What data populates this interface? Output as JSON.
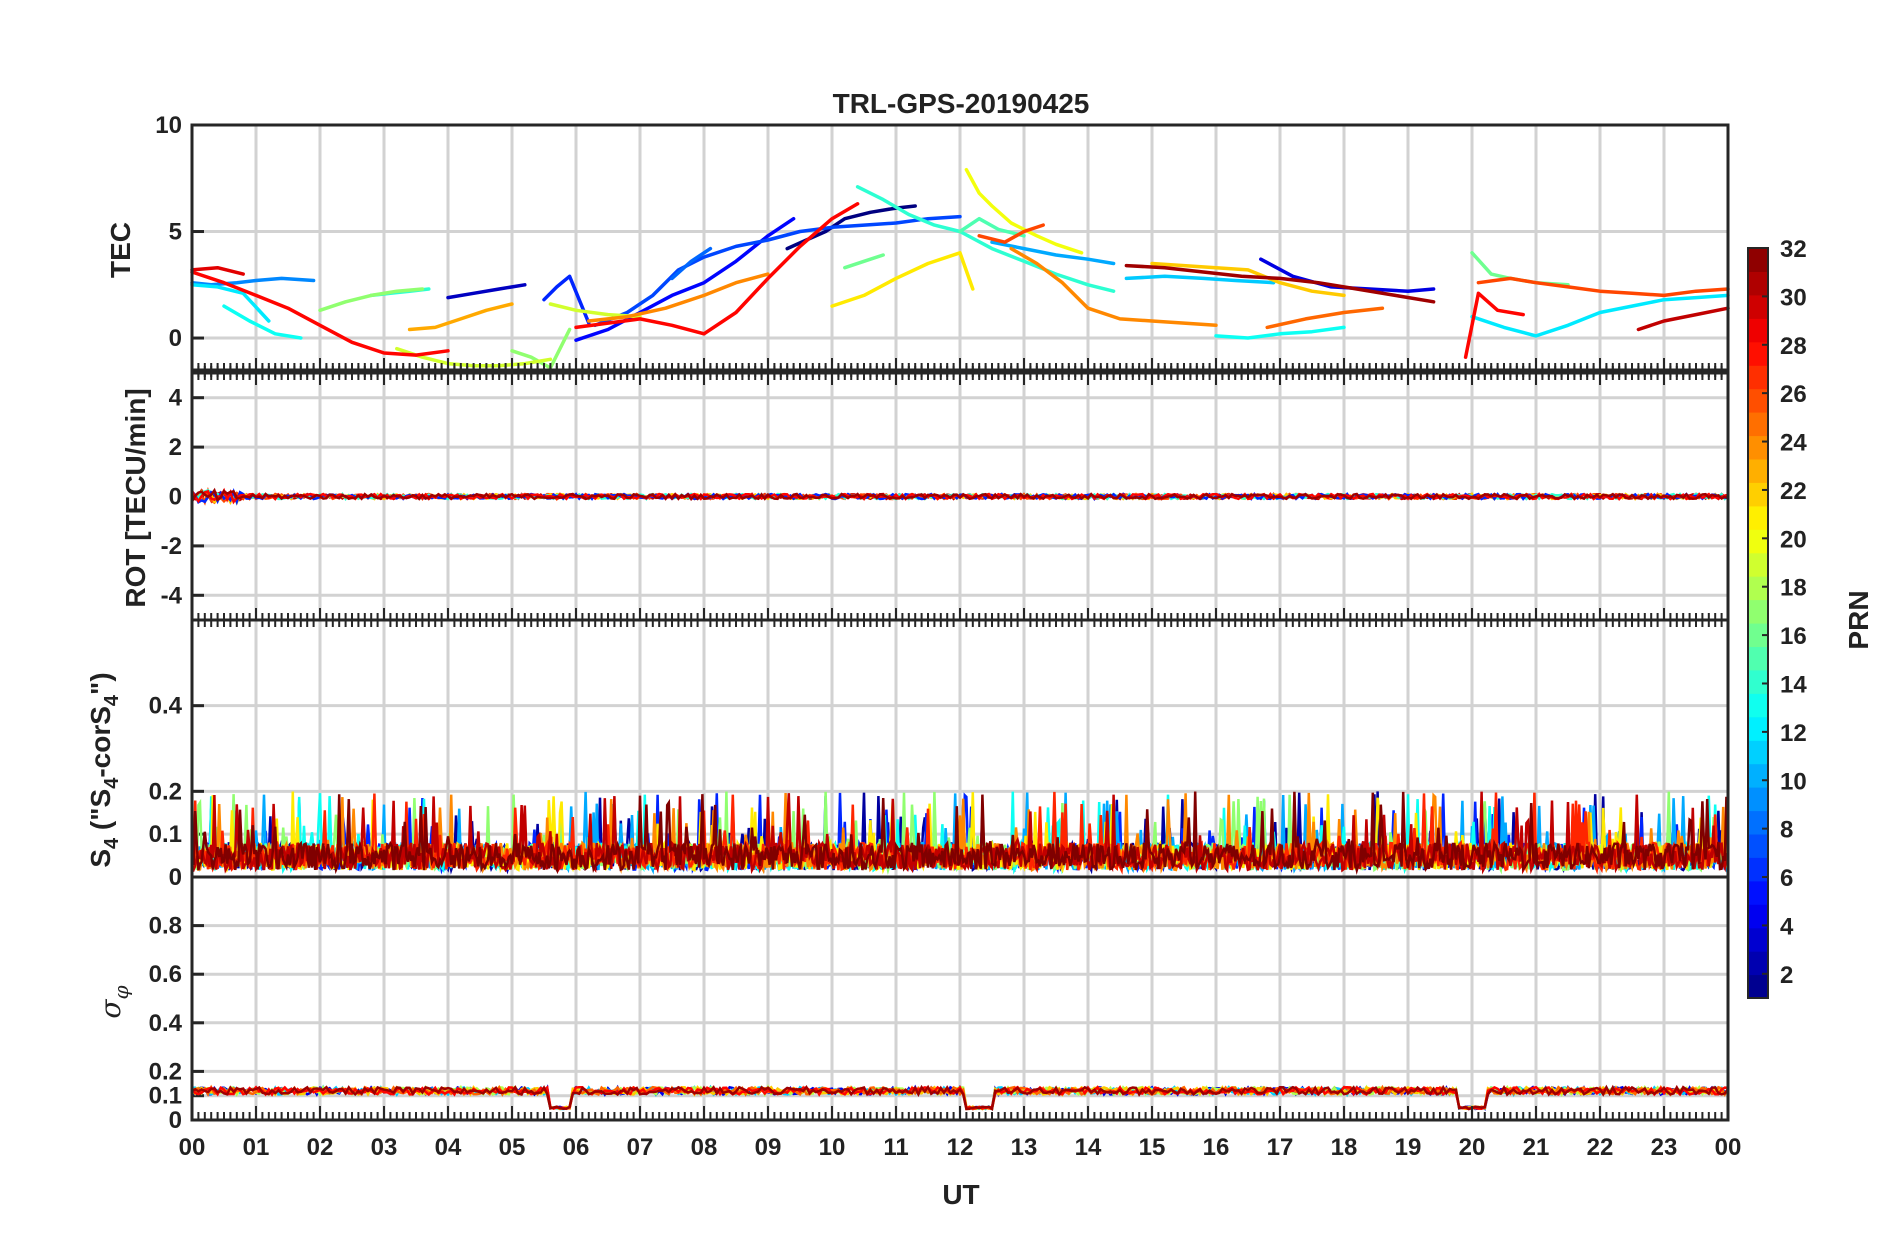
{
  "chart_data": {
    "type": "line",
    "title": "TRL-GPS-20190425",
    "xlabel": "UT",
    "x_ticks": [
      "00",
      "01",
      "02",
      "03",
      "04",
      "05",
      "06",
      "07",
      "08",
      "09",
      "10",
      "11",
      "12",
      "13",
      "14",
      "15",
      "16",
      "17",
      "18",
      "19",
      "20",
      "21",
      "22",
      "23",
      "00"
    ],
    "x_range_hours": [
      0,
      24
    ],
    "grid": true,
    "colorbar": {
      "label": "PRN",
      "range": [
        1,
        32
      ],
      "ticks": [
        2,
        4,
        6,
        8,
        10,
        12,
        14,
        16,
        18,
        20,
        22,
        24,
        26,
        28,
        30,
        32
      ],
      "colormap": "jet",
      "placement": "right"
    },
    "panels": [
      {
        "id": "tec",
        "ylabel": "TEC",
        "ylim": [
          -1.5,
          10
        ],
        "y_ticks": [
          "0",
          "5",
          "10"
        ],
        "y_tick_values": [
          0,
          5,
          10
        ],
        "series": [
          {
            "prn": 1,
            "x": [
              9.3,
              9.6,
              9.9,
              10.2,
              10.6,
              11.0,
              11.3
            ],
            "y": [
              4.2,
              4.6,
              5.0,
              5.6,
              5.9,
              6.1,
              6.2
            ]
          },
          {
            "prn": 3,
            "x": [
              4.0,
              4.4,
              4.8,
              5.2
            ],
            "y": [
              1.9,
              2.1,
              2.3,
              2.5
            ]
          },
          {
            "prn": 4,
            "x": [
              16.7,
              17.2,
              17.8,
              18.4,
              19.0,
              19.4
            ],
            "y": [
              3.7,
              2.9,
              2.4,
              2.3,
              2.2,
              2.3
            ]
          },
          {
            "prn": 5,
            "x": [
              6.0,
              6.5,
              7.0,
              7.5,
              8.0,
              8.5,
              9.0,
              9.4
            ],
            "y": [
              -0.1,
              0.4,
              1.2,
              2.0,
              2.6,
              3.6,
              4.8,
              5.6
            ]
          },
          {
            "prn": 6,
            "x": [
              5.5,
              5.7,
              5.9,
              6.2
            ],
            "y": [
              1.8,
              2.4,
              2.9,
              0.7
            ]
          },
          {
            "prn": 7,
            "x": [
              6.3,
              6.8,
              7.2,
              7.6,
              8.0,
              8.5,
              9.0,
              9.5,
              10.0,
              10.5,
              11.0,
              11.5,
              12.0
            ],
            "y": [
              0.6,
              1.2,
              2.0,
              3.2,
              3.8,
              4.3,
              4.6,
              5.0,
              5.2,
              5.3,
              5.4,
              5.6,
              5.7
            ]
          },
          {
            "prn": 8,
            "x": [
              7.5,
              7.8,
              8.1
            ],
            "y": [
              2.8,
              3.6,
              4.2
            ]
          },
          {
            "prn": 9,
            "x": [
              0.0,
              0.3,
              0.7,
              1.0,
              1.4,
              1.9
            ],
            "y": [
              2.6,
              2.5,
              2.6,
              2.7,
              2.8,
              2.7
            ]
          },
          {
            "prn": 10,
            "x": [
              12.5,
              13.0,
              13.5,
              14.0,
              14.4
            ],
            "y": [
              4.5,
              4.2,
              3.9,
              3.7,
              3.5
            ]
          },
          {
            "prn": 11,
            "x": [
              14.6,
              15.2,
              15.8,
              16.3,
              16.9
            ],
            "y": [
              2.8,
              2.9,
              2.8,
              2.7,
              2.6
            ]
          },
          {
            "prn": 12,
            "x": [
              20.0,
              20.5,
              21.0,
              21.5,
              22.0,
              22.5,
              23.0,
              23.5,
              24.0
            ],
            "y": [
              1.0,
              0.5,
              0.1,
              0.6,
              1.2,
              1.5,
              1.8,
              1.9,
              2.0
            ]
          },
          {
            "prn": 12,
            "x": [
              0.0,
              0.4,
              0.8,
              1.2
            ],
            "y": [
              2.5,
              2.4,
              2.1,
              0.8
            ]
          },
          {
            "prn": 13,
            "x": [
              16.0,
              16.5,
              17.0,
              17.5,
              18.0
            ],
            "y": [
              0.1,
              0.0,
              0.2,
              0.3,
              0.5
            ]
          },
          {
            "prn": 13,
            "x": [
              0.5,
              0.9,
              1.3,
              1.7
            ],
            "y": [
              1.5,
              0.8,
              0.2,
              0.0
            ]
          },
          {
            "prn": 14,
            "x": [
              10.4,
              10.8,
              11.2,
              11.6,
              12.0,
              12.5,
              13.0,
              13.5,
              14.0,
              14.4
            ],
            "y": [
              7.1,
              6.5,
              5.8,
              5.3,
              5.0,
              4.2,
              3.6,
              3.0,
              2.5,
              2.2
            ]
          },
          {
            "prn": 14,
            "x": [
              2.8,
              3.1,
              3.4,
              3.7
            ],
            "y": [
              2.0,
              2.1,
              2.2,
              2.3
            ]
          },
          {
            "prn": 15,
            "x": [
              12.0,
              12.3,
              12.6,
              13.0
            ],
            "y": [
              5.0,
              5.6,
              5.1,
              4.8
            ]
          },
          {
            "prn": 16,
            "x": [
              20.0,
              20.3,
              20.6,
              21.0,
              21.5
            ],
            "y": [
              4.0,
              3.0,
              2.8,
              2.6,
              2.5
            ]
          },
          {
            "prn": 16,
            "x": [
              10.2,
              10.5,
              10.8
            ],
            "y": [
              3.3,
              3.6,
              3.9
            ]
          },
          {
            "prn": 17,
            "x": [
              2.0,
              2.4,
              2.8,
              3.2,
              3.6
            ],
            "y": [
              1.3,
              1.7,
              2.0,
              2.2,
              2.3
            ]
          },
          {
            "prn": 17,
            "x": [
              5.0,
              5.3,
              5.6,
              5.9
            ],
            "y": [
              -0.6,
              -0.9,
              -1.4,
              0.4
            ]
          },
          {
            "prn": 19,
            "x": [
              3.2,
              3.6,
              4.0,
              4.4,
              4.8,
              5.2,
              5.6
            ],
            "y": [
              -0.5,
              -0.9,
              -1.2,
              -1.3,
              -1.3,
              -1.2,
              -1.0
            ]
          },
          {
            "prn": 19,
            "x": [
              5.6,
              6.0,
              6.5,
              7.0
            ],
            "y": [
              1.6,
              1.3,
              1.1,
              1.0
            ]
          },
          {
            "prn": 20,
            "x": [
              12.1,
              12.3,
              12.5,
              12.8,
              13.2,
              13.5,
              13.9
            ],
            "y": [
              7.9,
              6.8,
              6.2,
              5.4,
              4.8,
              4.4,
              4.0
            ]
          },
          {
            "prn": 21,
            "x": [
              10.0,
              10.5,
              11.0,
              11.5,
              12.0,
              12.2
            ],
            "y": [
              1.5,
              2.0,
              2.8,
              3.5,
              4.0,
              2.3
            ]
          },
          {
            "prn": 22,
            "x": [
              15.0,
              15.5,
              16.0,
              16.5,
              17.0,
              17.5,
              18.0
            ],
            "y": [
              3.5,
              3.4,
              3.3,
              3.2,
              2.6,
              2.2,
              2.0
            ]
          },
          {
            "prn": 23,
            "x": [
              3.4,
              3.8,
              4.2,
              4.6,
              5.0
            ],
            "y": [
              0.4,
              0.5,
              0.9,
              1.3,
              1.6
            ]
          },
          {
            "prn": 24,
            "x": [
              12.8,
              13.2,
              13.6,
              14.0,
              14.5,
              15.0,
              15.5,
              16.0
            ],
            "y": [
              4.2,
              3.5,
              2.6,
              1.4,
              0.9,
              0.8,
              0.7,
              0.6
            ]
          },
          {
            "prn": 24,
            "x": [
              6.2,
              6.8,
              7.4,
              8.0,
              8.5,
              9.0
            ],
            "y": [
              0.8,
              1.0,
              1.4,
              2.0,
              2.6,
              3.0
            ]
          },
          {
            "prn": 25,
            "x": [
              16.8,
              17.4,
              18.0,
              18.6
            ],
            "y": [
              0.5,
              0.9,
              1.2,
              1.4
            ]
          },
          {
            "prn": 26,
            "x": [
              20.1,
              20.6,
              21.0,
              21.5,
              22.0,
              22.5,
              23.0,
              23.5,
              24.0
            ],
            "y": [
              2.6,
              2.8,
              2.6,
              2.4,
              2.2,
              2.1,
              2.0,
              2.2,
              2.3
            ]
          },
          {
            "prn": 26,
            "x": [
              12.3,
              12.7,
              13.0,
              13.3
            ],
            "y": [
              4.8,
              4.5,
              5.0,
              5.3
            ]
          },
          {
            "prn": 28,
            "x": [
              0.0,
              0.5,
              1.0,
              1.5,
              2.0,
              2.5,
              3.0,
              3.5,
              4.0
            ],
            "y": [
              3.1,
              2.6,
              2.0,
              1.4,
              0.6,
              -0.2,
              -0.7,
              -0.8,
              -0.6
            ]
          },
          {
            "prn": 28,
            "x": [
              6.0,
              6.5,
              7.0,
              7.5,
              8.0,
              8.5,
              9.0,
              9.5,
              10.0,
              10.4
            ],
            "y": [
              0.5,
              0.7,
              0.9,
              0.6,
              0.2,
              1.2,
              2.8,
              4.3,
              5.6,
              6.3
            ]
          },
          {
            "prn": 28,
            "x": [
              19.9,
              20.1,
              20.4,
              20.8
            ],
            "y": [
              -0.9,
              2.1,
              1.3,
              1.1
            ]
          },
          {
            "prn": 29,
            "x": [
              0.0,
              0.4,
              0.8
            ],
            "y": [
              3.2,
              3.3,
              3.0
            ]
          },
          {
            "prn": 30,
            "x": [
              22.6,
              23.0,
              23.5,
              24.0
            ],
            "y": [
              0.4,
              0.8,
              1.1,
              1.4
            ]
          },
          {
            "prn": 31,
            "x": [
              14.6,
              15.2,
              15.8,
              16.4,
              17.0,
              17.6,
              18.2,
              18.8,
              19.4
            ],
            "y": [
              3.4,
              3.3,
              3.1,
              2.9,
              2.8,
              2.6,
              2.3,
              2.0,
              1.7
            ]
          }
        ]
      },
      {
        "id": "rot",
        "ylabel": "ROT [TECU/min]",
        "ylim": [
          -5,
          5
        ],
        "y_ticks": [
          "-4",
          "-2",
          "0",
          "2",
          "4"
        ],
        "y_tick_values": [
          -4,
          -2,
          0,
          2,
          4
        ],
        "approx_level": 0.0,
        "approx_amplitude": 0.1
      },
      {
        "id": "s4",
        "ylabel": "S4 (\"S4-corS4\")",
        "ylim": [
          0,
          0.6
        ],
        "y_ticks": [
          "0",
          "0.1",
          "0.2",
          "0.4"
        ],
        "y_tick_values": [
          0,
          0.1,
          0.2,
          0.4
        ],
        "approx_level": 0.04,
        "approx_peak": 0.2
      },
      {
        "id": "sigma",
        "ylabel": "σφ",
        "ylim": [
          0,
          1
        ],
        "y_ticks": [
          "0",
          "0.1",
          "0.2",
          "0.4",
          "0.6",
          "0.8"
        ],
        "y_tick_values": [
          0,
          0.1,
          0.2,
          0.4,
          0.6,
          0.8
        ],
        "approx_level": 0.12,
        "dips": [
          {
            "x": [
              5.6,
              5.9
            ],
            "y": 0.05
          },
          {
            "x": [
              12.1,
              12.5
            ],
            "y": 0.05
          },
          {
            "x": [
              19.8,
              20.2
            ],
            "y": 0.05
          }
        ]
      }
    ]
  }
}
